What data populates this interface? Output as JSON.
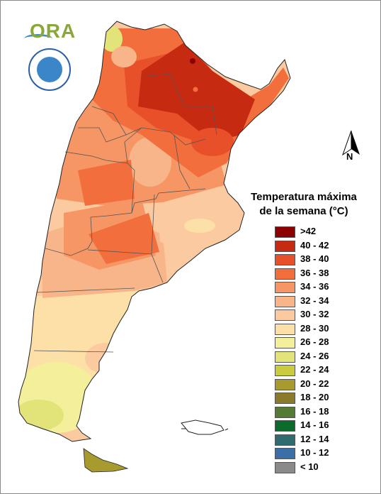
{
  "legend": {
    "title_line1": "Temperatura máxima",
    "title_line2": "de la semana (°C)",
    "items": [
      {
        "label": ">42",
        "color": "#8b0000"
      },
      {
        "label": "40 - 42",
        "color": "#c62a10"
      },
      {
        "label": "38 - 40",
        "color": "#e8502a"
      },
      {
        "label": "36 - 38",
        "color": "#f26f3d"
      },
      {
        "label": "34 - 36",
        "color": "#f69665"
      },
      {
        "label": "32 - 34",
        "color": "#f9b58a"
      },
      {
        "label": "30 - 32",
        "color": "#fccaa0"
      },
      {
        "label": "28 - 30",
        "color": "#fde0a8"
      },
      {
        "label": "26 - 28",
        "color": "#f4ef9a"
      },
      {
        "label": "24 - 26",
        "color": "#e2e47a"
      },
      {
        "label": "22 - 24",
        "color": "#c8cc3e"
      },
      {
        "label": "20 - 22",
        "color": "#a79b2f"
      },
      {
        "label": "18 - 20",
        "color": "#8c7a2c"
      },
      {
        "label": "16 - 18",
        "color": "#557a36"
      },
      {
        "label": "14 - 16",
        "color": "#0c6b2c"
      },
      {
        "label": "12 - 14",
        "color": "#2f6b6f"
      },
      {
        "label": "10 - 12",
        "color": "#3a6fa8"
      },
      {
        "label": "< 10",
        "color": "#8a8a8a"
      }
    ]
  },
  "north_label": "N",
  "logos": {
    "ora": "ORA"
  },
  "colors": {
    "border": "#555555",
    "outline": "#222222"
  }
}
